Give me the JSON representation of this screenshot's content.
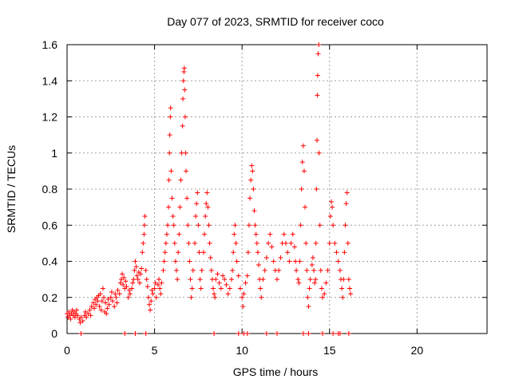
{
  "chart_data": {
    "type": "scatter",
    "title": "Day 077 of 2023, SRMTID for receiver coco",
    "xlabel": "GPS time / hours",
    "ylabel": "SRMTID / TECUs",
    "xlim": [
      0,
      24
    ],
    "ylim": [
      0,
      1.6
    ],
    "x_ticks": [
      0,
      5,
      10,
      15,
      20
    ],
    "y_ticks": [
      0,
      0.2,
      0.4,
      0.6,
      0.8,
      1,
      1.2,
      1.4,
      1.6
    ],
    "x_tick_labels": [
      "0",
      "5",
      "10",
      "15",
      "20"
    ],
    "y_tick_labels": [
      "0",
      "0.2",
      "0.4",
      "0.6",
      "0.8",
      "1",
      "1.2",
      "1.4",
      "1.6"
    ],
    "grid": true,
    "marker": "+",
    "color": "#ff0000",
    "series": [
      {
        "name": "SRMTID",
        "points": [
          [
            0.0,
            0.11
          ],
          [
            0.05,
            0.09
          ],
          [
            0.1,
            0.12
          ],
          [
            0.15,
            0.1
          ],
          [
            0.2,
            0.08
          ],
          [
            0.25,
            0.11
          ],
          [
            0.3,
            0.13
          ],
          [
            0.35,
            0.1
          ],
          [
            0.4,
            0.12
          ],
          [
            0.45,
            0.09
          ],
          [
            0.5,
            0.11
          ],
          [
            0.55,
            0.13
          ],
          [
            0.6,
            0.1
          ],
          [
            0.7,
            0.08
          ],
          [
            0.75,
            0.06
          ],
          [
            0.8,
            0.09
          ],
          [
            0.9,
            0.07
          ],
          [
            1.0,
            0.1
          ],
          [
            1.05,
            0.12
          ],
          [
            1.1,
            0.09
          ],
          [
            1.2,
            0.11
          ],
          [
            1.3,
            0.13
          ],
          [
            1.35,
            0.1
          ],
          [
            1.4,
            0.15
          ],
          [
            1.5,
            0.17
          ],
          [
            1.55,
            0.14
          ],
          [
            1.6,
            0.19
          ],
          [
            1.65,
            0.16
          ],
          [
            1.7,
            0.2
          ],
          [
            1.75,
            0.18
          ],
          [
            1.8,
            0.21
          ],
          [
            1.85,
            0.15
          ],
          [
            1.9,
            0.22
          ],
          [
            1.95,
            0.13
          ],
          [
            2.0,
            0.18
          ],
          [
            2.05,
            0.25
          ],
          [
            2.1,
            0.2
          ],
          [
            2.15,
            0.12
          ],
          [
            2.2,
            0.17
          ],
          [
            2.25,
            0.11
          ],
          [
            2.3,
            0.14
          ],
          [
            2.35,
            0.19
          ],
          [
            2.4,
            0.16
          ],
          [
            2.5,
            0.2
          ],
          [
            2.55,
            0.23
          ],
          [
            2.6,
            0.18
          ],
          [
            2.7,
            0.15
          ],
          [
            2.75,
            0.22
          ],
          [
            2.8,
            0.2
          ],
          [
            2.85,
            0.17
          ],
          [
            2.9,
            0.24
          ],
          [
            3.0,
            0.22
          ],
          [
            3.05,
            0.28
          ],
          [
            3.1,
            0.3
          ],
          [
            3.15,
            0.33
          ],
          [
            3.2,
            0.27
          ],
          [
            3.25,
            0.31
          ],
          [
            3.3,
            0.25
          ],
          [
            3.35,
            0.29
          ],
          [
            3.4,
            0.26
          ],
          [
            3.5,
            0.2
          ],
          [
            3.55,
            0.24
          ],
          [
            3.6,
            0.22
          ],
          [
            3.7,
            0.25
          ],
          [
            3.75,
            0.28
          ],
          [
            3.8,
            0.3
          ],
          [
            3.85,
            0.35
          ],
          [
            3.9,
            0.4
          ],
          [
            3.95,
            0.37
          ],
          [
            4.0,
            0.32
          ],
          [
            4.05,
            0.3
          ],
          [
            4.1,
            0.34
          ],
          [
            4.15,
            0.28
          ],
          [
            4.2,
            0.33
          ],
          [
            4.25,
            0.36
          ],
          [
            4.3,
            0.45
          ],
          [
            4.35,
            0.5
          ],
          [
            4.4,
            0.55
          ],
          [
            4.42,
            0.6
          ],
          [
            4.45,
            0.65
          ],
          [
            4.5,
            0.35
          ],
          [
            4.55,
            0.3
          ],
          [
            4.6,
            0.26
          ],
          [
            4.65,
            0.2
          ],
          [
            4.7,
            0.16
          ],
          [
            4.75,
            0.13
          ],
          [
            4.8,
            0.18
          ],
          [
            4.85,
            0.24
          ],
          [
            4.9,
            0.22
          ],
          [
            5.0,
            0.25
          ],
          [
            5.05,
            0.28
          ],
          [
            5.1,
            0.2
          ],
          [
            5.2,
            0.27
          ],
          [
            5.25,
            0.3
          ],
          [
            5.3,
            0.25
          ],
          [
            5.35,
            0.22
          ],
          [
            5.4,
            0.28
          ],
          [
            5.5,
            0.35
          ],
          [
            5.55,
            0.4
          ],
          [
            5.6,
            0.45
          ],
          [
            5.65,
            0.5
          ],
          [
            5.7,
            0.55
          ],
          [
            5.75,
            0.6
          ],
          [
            5.8,
            0.7
          ],
          [
            5.82,
            0.85
          ],
          [
            5.85,
            1.0
          ],
          [
            5.87,
            1.1
          ],
          [
            5.9,
            1.2
          ],
          [
            5.92,
            1.25
          ],
          [
            5.95,
            0.9
          ],
          [
            6.0,
            0.75
          ],
          [
            6.05,
            0.65
          ],
          [
            6.1,
            0.6
          ],
          [
            6.15,
            0.5
          ],
          [
            6.2,
            0.4
          ],
          [
            6.25,
            0.35
          ],
          [
            6.3,
            0.3
          ],
          [
            6.35,
            0.45
          ],
          [
            6.4,
            0.55
          ],
          [
            6.45,
            0.7
          ],
          [
            6.5,
            0.85
          ],
          [
            6.55,
            1.0
          ],
          [
            6.6,
            1.15
          ],
          [
            6.62,
            1.3
          ],
          [
            6.65,
            1.4
          ],
          [
            6.68,
            1.45
          ],
          [
            6.7,
            1.47
          ],
          [
            6.72,
            1.35
          ],
          [
            6.75,
            1.2
          ],
          [
            6.78,
            1.0
          ],
          [
            6.8,
            0.9
          ],
          [
            6.85,
            0.75
          ],
          [
            6.9,
            0.6
          ],
          [
            6.95,
            0.5
          ],
          [
            7.0,
            0.4
          ],
          [
            7.05,
            0.3
          ],
          [
            7.1,
            0.2
          ],
          [
            7.15,
            0.25
          ],
          [
            7.2,
            0.35
          ],
          [
            7.3,
            0.5
          ],
          [
            7.35,
            0.65
          ],
          [
            7.4,
            0.72
          ],
          [
            7.45,
            0.78
          ],
          [
            7.5,
            0.6
          ],
          [
            7.55,
            0.45
          ],
          [
            7.6,
            0.3
          ],
          [
            7.65,
            0.25
          ],
          [
            7.7,
            0.35
          ],
          [
            7.8,
            0.45
          ],
          [
            7.85,
            0.55
          ],
          [
            7.9,
            0.65
          ],
          [
            7.95,
            0.72
          ],
          [
            8.0,
            0.78
          ],
          [
            8.05,
            0.7
          ],
          [
            8.1,
            0.6
          ],
          [
            8.15,
            0.5
          ],
          [
            8.2,
            0.42
          ],
          [
            8.25,
            0.35
          ],
          [
            8.3,
            0.3
          ],
          [
            8.35,
            0.25
          ],
          [
            8.4,
            0.22
          ],
          [
            8.45,
            0.2
          ],
          [
            8.5,
            0.3
          ],
          [
            8.6,
            0.33
          ],
          [
            8.7,
            0.28
          ],
          [
            8.8,
            0.25
          ],
          [
            8.9,
            0.32
          ],
          [
            9.0,
            0.3
          ],
          [
            9.1,
            0.27
          ],
          [
            9.2,
            0.22
          ],
          [
            9.3,
            0.25
          ],
          [
            9.4,
            0.3
          ],
          [
            9.45,
            0.35
          ],
          [
            9.5,
            0.45
          ],
          [
            9.55,
            0.55
          ],
          [
            9.6,
            0.6
          ],
          [
            9.65,
            0.5
          ],
          [
            9.7,
            0.4
          ],
          [
            9.8,
            0.32
          ],
          [
            9.9,
            0.25
          ],
          [
            10.0,
            0.2
          ],
          [
            10.05,
            0.15
          ],
          [
            10.1,
            0.22
          ],
          [
            10.2,
            0.28
          ],
          [
            10.3,
            0.32
          ],
          [
            10.35,
            0.45
          ],
          [
            10.4,
            0.6
          ],
          [
            10.45,
            0.75
          ],
          [
            10.5,
            0.85
          ],
          [
            10.55,
            0.93
          ],
          [
            10.6,
            0.9
          ],
          [
            10.65,
            0.8
          ],
          [
            10.7,
            0.68
          ],
          [
            10.75,
            0.6
          ],
          [
            10.8,
            0.55
          ],
          [
            10.85,
            0.5
          ],
          [
            10.9,
            0.45
          ],
          [
            10.95,
            0.38
          ],
          [
            11.0,
            0.3
          ],
          [
            11.05,
            0.25
          ],
          [
            11.1,
            0.2
          ],
          [
            11.2,
            0.3
          ],
          [
            11.3,
            0.35
          ],
          [
            11.4,
            0.42
          ],
          [
            11.5,
            0.5
          ],
          [
            11.6,
            0.55
          ],
          [
            11.7,
            0.48
          ],
          [
            11.8,
            0.4
          ],
          [
            11.9,
            0.35
          ],
          [
            12.0,
            0.3
          ],
          [
            12.1,
            0.35
          ],
          [
            12.2,
            0.42
          ],
          [
            12.3,
            0.5
          ],
          [
            12.4,
            0.55
          ],
          [
            12.5,
            0.5
          ],
          [
            12.6,
            0.45
          ],
          [
            12.7,
            0.4
          ],
          [
            12.8,
            0.5
          ],
          [
            12.9,
            0.55
          ],
          [
            13.0,
            0.48
          ],
          [
            13.05,
            0.4
          ],
          [
            13.1,
            0.35
          ],
          [
            13.2,
            0.3
          ],
          [
            13.25,
            0.28
          ],
          [
            13.3,
            0.4
          ],
          [
            13.35,
            0.6
          ],
          [
            13.4,
            0.8
          ],
          [
            13.45,
            0.95
          ],
          [
            13.5,
            1.04
          ],
          [
            13.55,
            0.9
          ],
          [
            13.6,
            0.7
          ],
          [
            13.65,
            0.5
          ],
          [
            13.7,
            0.35
          ],
          [
            13.75,
            0.2
          ],
          [
            13.8,
            0.15
          ],
          [
            13.85,
            0.25
          ],
          [
            13.9,
            0.3
          ],
          [
            14.0,
            0.38
          ],
          [
            14.05,
            0.42
          ],
          [
            14.1,
            0.35
          ],
          [
            14.15,
            0.28
          ],
          [
            14.2,
            0.3
          ],
          [
            14.22,
            0.5
          ],
          [
            14.25,
            0.8
          ],
          [
            14.28,
            1.07
          ],
          [
            14.3,
            1.32
          ],
          [
            14.32,
            1.43
          ],
          [
            14.35,
            1.55
          ],
          [
            14.38,
            1.6
          ],
          [
            14.4,
            1.0
          ],
          [
            14.45,
            0.6
          ],
          [
            14.5,
            0.35
          ],
          [
            14.55,
            0.25
          ],
          [
            14.6,
            0.2
          ],
          [
            14.7,
            0.22
          ],
          [
            14.8,
            0.28
          ],
          [
            14.9,
            0.35
          ],
          [
            15.0,
            0.5
          ],
          [
            15.05,
            0.65
          ],
          [
            15.1,
            0.73
          ],
          [
            15.15,
            0.7
          ],
          [
            15.2,
            0.6
          ],
          [
            15.3,
            0.5
          ],
          [
            15.4,
            0.45
          ],
          [
            15.5,
            0.4
          ],
          [
            15.6,
            0.35
          ],
          [
            15.65,
            0.3
          ],
          [
            15.7,
            0.25
          ],
          [
            15.75,
            0.2
          ],
          [
            15.8,
            0.3
          ],
          [
            15.85,
            0.45
          ],
          [
            15.9,
            0.6
          ],
          [
            15.95,
            0.72
          ],
          [
            16.0,
            0.78
          ],
          [
            16.05,
            0.5
          ],
          [
            16.1,
            0.3
          ],
          [
            16.15,
            0.25
          ],
          [
            16.2,
            0.22
          ],
          [
            0.8,
            0.0
          ],
          [
            3.3,
            0.0
          ],
          [
            3.9,
            0.0
          ],
          [
            4.5,
            0.0
          ],
          [
            8.4,
            0.0
          ],
          [
            9.8,
            0.0
          ],
          [
            10.1,
            0.0
          ],
          [
            10.3,
            0.0
          ],
          [
            11.4,
            0.0
          ],
          [
            12.0,
            0.0
          ],
          [
            13.5,
            0.0
          ],
          [
            13.8,
            0.0
          ],
          [
            14.6,
            0.0
          ],
          [
            15.2,
            0.0
          ],
          [
            15.5,
            0.0
          ],
          [
            15.6,
            0.0
          ],
          [
            16.1,
            0.0
          ]
        ]
      }
    ]
  }
}
